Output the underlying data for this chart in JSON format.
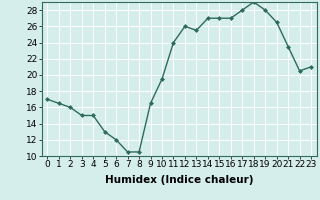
{
  "x": [
    0,
    1,
    2,
    3,
    4,
    5,
    6,
    7,
    8,
    9,
    10,
    11,
    12,
    13,
    14,
    15,
    16,
    17,
    18,
    19,
    20,
    21,
    22,
    23
  ],
  "y": [
    17,
    16.5,
    16,
    15,
    15,
    13,
    12,
    10.5,
    10.5,
    16.5,
    19.5,
    24,
    26,
    25.5,
    27,
    27,
    27,
    28,
    29,
    28,
    26.5,
    23.5,
    20.5,
    21
  ],
  "line_color": "#2e6b5e",
  "marker": "D",
  "marker_size": 2,
  "bg_color": "#d5eeeb",
  "grid_color": "#ffffff",
  "xlabel": "Humidex (Indice chaleur)",
  "xlim": [
    -0.5,
    23.5
  ],
  "ylim": [
    10,
    29
  ],
  "yticks": [
    10,
    12,
    14,
    16,
    18,
    20,
    22,
    24,
    26,
    28
  ],
  "xticks": [
    0,
    1,
    2,
    3,
    4,
    5,
    6,
    7,
    8,
    9,
    10,
    11,
    12,
    13,
    14,
    15,
    16,
    17,
    18,
    19,
    20,
    21,
    22,
    23
  ],
  "xlabel_fontsize": 7.5,
  "tick_fontsize": 6.5
}
